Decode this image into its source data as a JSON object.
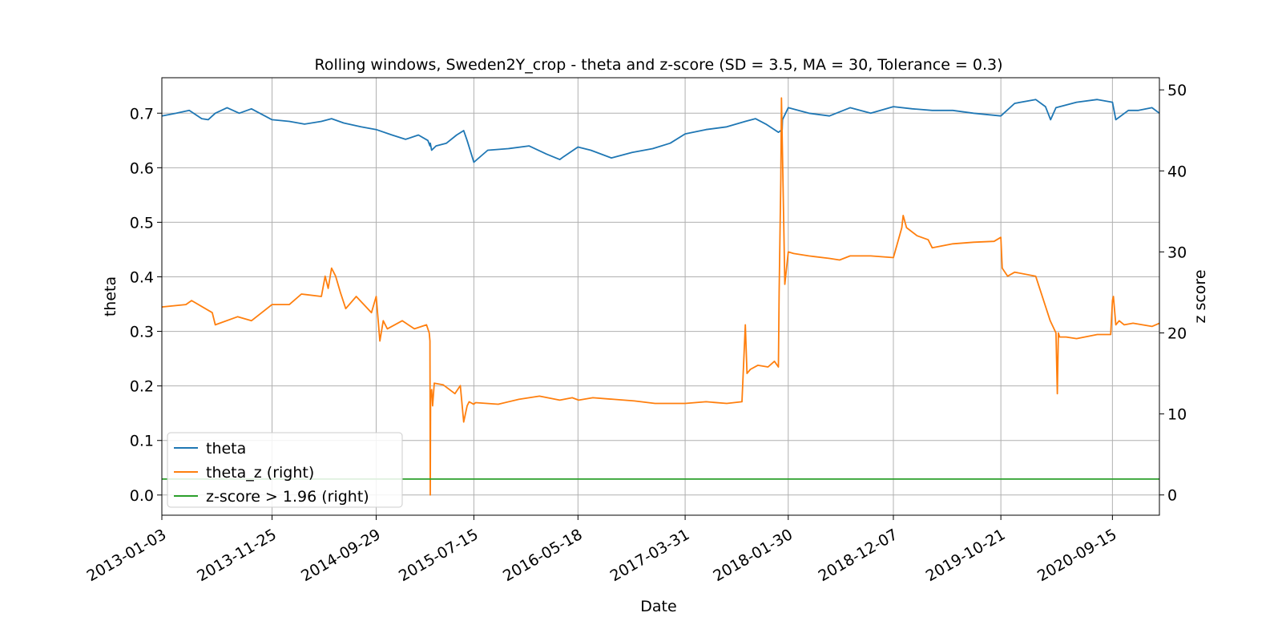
{
  "chart_data": {
    "type": "line",
    "title": "Rolling windows, Sweden2Y_crop - theta and z-score (SD = 3.5, MA = 30, Tolerance  = 0.3)",
    "xlabel": "Date",
    "ylabel": "theta",
    "ylabel_right": "z score",
    "x_ticks": [
      "2013-01-03",
      "2013-11-25",
      "2014-09-29",
      "2015-07-15",
      "2016-05-18",
      "2017-03-31",
      "2018-01-30",
      "2018-12-07",
      "2019-10-21",
      "2020-09-15"
    ],
    "xlim": [
      "2013-01-03",
      "2021-02-01"
    ],
    "ylim": [
      -0.037,
      0.765
    ],
    "ylim_right": [
      -2.5,
      51.5
    ],
    "y_ticks": [
      "0.0",
      "0.1",
      "0.2",
      "0.3",
      "0.4",
      "0.5",
      "0.6",
      "0.7"
    ],
    "y_ticks_right": [
      "0",
      "10",
      "20",
      "30",
      "40",
      "50"
    ],
    "grid": true,
    "legend": {
      "placement": "lower-left",
      "entries": [
        "theta",
        "theta_z (right)",
        "z-score > 1.96 (right)"
      ]
    },
    "series": [
      {
        "name": "theta",
        "axis": "left",
        "color": "#1f77b4",
        "x": [
          "2013-01-03",
          "2013-02-15",
          "2013-03-25",
          "2013-05-01",
          "2013-05-20",
          "2013-06-10",
          "2013-07-15",
          "2013-08-20",
          "2013-09-25",
          "2013-11-25",
          "2014-01-15",
          "2014-03-01",
          "2014-04-20",
          "2014-05-20",
          "2014-06-25",
          "2014-08-15",
          "2014-09-29",
          "2014-11-15",
          "2014-12-25",
          "2015-02-01",
          "2015-03-01",
          "2015-03-07",
          "2015-03-08",
          "2015-03-12",
          "2015-03-25",
          "2015-04-25",
          "2015-05-25",
          "2015-06-15",
          "2015-06-25",
          "2015-07-15",
          "2015-08-25",
          "2015-10-25",
          "2015-12-25",
          "2016-02-15",
          "2016-03-25",
          "2016-04-05",
          "2016-05-18",
          "2016-06-25",
          "2016-08-25",
          "2016-10-25",
          "2016-12-25",
          "2017-02-15",
          "2017-03-31",
          "2017-06-01",
          "2017-08-01",
          "2017-09-25",
          "2017-10-25",
          "2017-11-25",
          "2018-01-01",
          "2018-01-12",
          "2018-01-13",
          "2018-01-30",
          "2018-04-01",
          "2018-06-01",
          "2018-08-01",
          "2018-10-01",
          "2018-12-07",
          "2019-02-01",
          "2019-04-01",
          "2019-06-01",
          "2019-08-01",
          "2019-10-21",
          "2019-12-01",
          "2020-02-01",
          "2020-03-01",
          "2020-03-16",
          "2020-04-01",
          "2020-06-01",
          "2020-08-01",
          "2020-09-15",
          "2020-09-25",
          "2020-11-01",
          "2020-12-01",
          "2021-01-10",
          "2021-02-01"
        ],
        "y": [
          0.695,
          0.7,
          0.705,
          0.69,
          0.688,
          0.7,
          0.71,
          0.7,
          0.708,
          0.688,
          0.685,
          0.68,
          0.685,
          0.69,
          0.682,
          0.675,
          0.67,
          0.66,
          0.652,
          0.66,
          0.65,
          0.64,
          0.645,
          0.632,
          0.64,
          0.645,
          0.66,
          0.668,
          0.65,
          0.61,
          0.632,
          0.635,
          0.64,
          0.625,
          0.615,
          0.62,
          0.638,
          0.632,
          0.618,
          0.628,
          0.635,
          0.645,
          0.662,
          0.67,
          0.675,
          0.685,
          0.69,
          0.68,
          0.665,
          0.67,
          0.688,
          0.71,
          0.7,
          0.695,
          0.71,
          0.7,
          0.712,
          0.708,
          0.705,
          0.705,
          0.7,
          0.695,
          0.718,
          0.725,
          0.712,
          0.688,
          0.71,
          0.72,
          0.725,
          0.72,
          0.688,
          0.705,
          0.705,
          0.71,
          0.7
        ]
      },
      {
        "name": "theta_z (right)",
        "axis": "right",
        "color": "#ff7f0e",
        "x": [
          "2013-01-03",
          "2013-03-15",
          "2013-04-01",
          "2013-06-01",
          "2013-06-10",
          "2013-08-15",
          "2013-09-25",
          "2013-11-25",
          "2014-01-15",
          "2014-02-20",
          "2014-04-20",
          "2014-05-01",
          "2014-05-10",
          "2014-05-20",
          "2014-06-01",
          "2014-06-15",
          "2014-07-01",
          "2014-08-01",
          "2014-09-15",
          "2014-09-29",
          "2014-10-10",
          "2014-10-20",
          "2014-11-01",
          "2014-12-15",
          "2015-01-20",
          "2015-02-25",
          "2015-03-05",
          "2015-03-07",
          "2015-03-08",
          "2015-03-09",
          "2015-03-12",
          "2015-03-15",
          "2015-03-20",
          "2015-04-15",
          "2015-05-20",
          "2015-06-05",
          "2015-06-15",
          "2015-06-25",
          "2015-07-01",
          "2015-07-10",
          "2015-07-15",
          "2015-07-20",
          "2015-09-25",
          "2015-11-25",
          "2016-01-25",
          "2016-03-25",
          "2016-05-01",
          "2016-05-20",
          "2016-07-01",
          "2016-09-01",
          "2016-11-01",
          "2017-01-01",
          "2017-03-31",
          "2017-06-01",
          "2017-08-01",
          "2017-09-15",
          "2017-09-25",
          "2017-09-30",
          "2017-10-10",
          "2017-11-01",
          "2017-12-01",
          "2017-12-20",
          "2018-01-01",
          "2018-01-03",
          "2018-01-08",
          "2018-01-10",
          "2018-01-13",
          "2018-01-20",
          "2018-01-30",
          "2018-02-15",
          "2018-04-01",
          "2018-06-01",
          "2018-07-01",
          "2018-08-01",
          "2018-10-01",
          "2018-12-07",
          "2019-01-01",
          "2019-01-05",
          "2019-01-15",
          "2019-02-15",
          "2019-03-20",
          "2019-04-01",
          "2019-06-01",
          "2019-08-01",
          "2019-10-01",
          "2019-10-21",
          "2019-10-25",
          "2019-11-10",
          "2019-12-01",
          "2020-02-01",
          "2020-03-15",
          "2020-04-01",
          "2020-04-05",
          "2020-04-08",
          "2020-04-12",
          "2020-05-01",
          "2020-06-01",
          "2020-08-01",
          "2020-09-10",
          "2020-09-15",
          "2020-09-18",
          "2020-09-25",
          "2020-10-05",
          "2020-10-20",
          "2020-11-15",
          "2021-01-10",
          "2021-02-01"
        ],
        "y": [
          23.2,
          23.5,
          24,
          22.5,
          21,
          22,
          21.5,
          23.5,
          23.5,
          24.8,
          24.5,
          27,
          25.5,
          28,
          27,
          25,
          23,
          24.5,
          22.5,
          24.5,
          19,
          21.5,
          20.5,
          21.5,
          20.5,
          21,
          20,
          19,
          0,
          12,
          13,
          11,
          13.8,
          13.6,
          12.5,
          13.5,
          9,
          11,
          11.5,
          11.3,
          11.2,
          11.4,
          11.2,
          11.8,
          12.2,
          11.7,
          12,
          11.7,
          12,
          11.8,
          11.6,
          11.3,
          11.3,
          11.5,
          11.3,
          11.5,
          21,
          15,
          15.5,
          16,
          15.8,
          16.5,
          15.8,
          25,
          39,
          49,
          42,
          26,
          30,
          29.8,
          29.5,
          29.2,
          29,
          29.5,
          29.5,
          29.3,
          33,
          34.5,
          33,
          32,
          31.5,
          30.5,
          31,
          31.2,
          31.3,
          31.8,
          28,
          27,
          27.5,
          27,
          21.5,
          20,
          12.5,
          20,
          19.5,
          19.5,
          19.3,
          19.8,
          19.8,
          24,
          24.5,
          21,
          21.5,
          21,
          21.2,
          20.8,
          21.2
        ]
      },
      {
        "name": "z-score > 1.96 (right)",
        "axis": "right",
        "color": "#2ca02c",
        "x": [
          "2013-01-03",
          "2021-02-01"
        ],
        "y": [
          1.96,
          1.96
        ]
      }
    ]
  }
}
